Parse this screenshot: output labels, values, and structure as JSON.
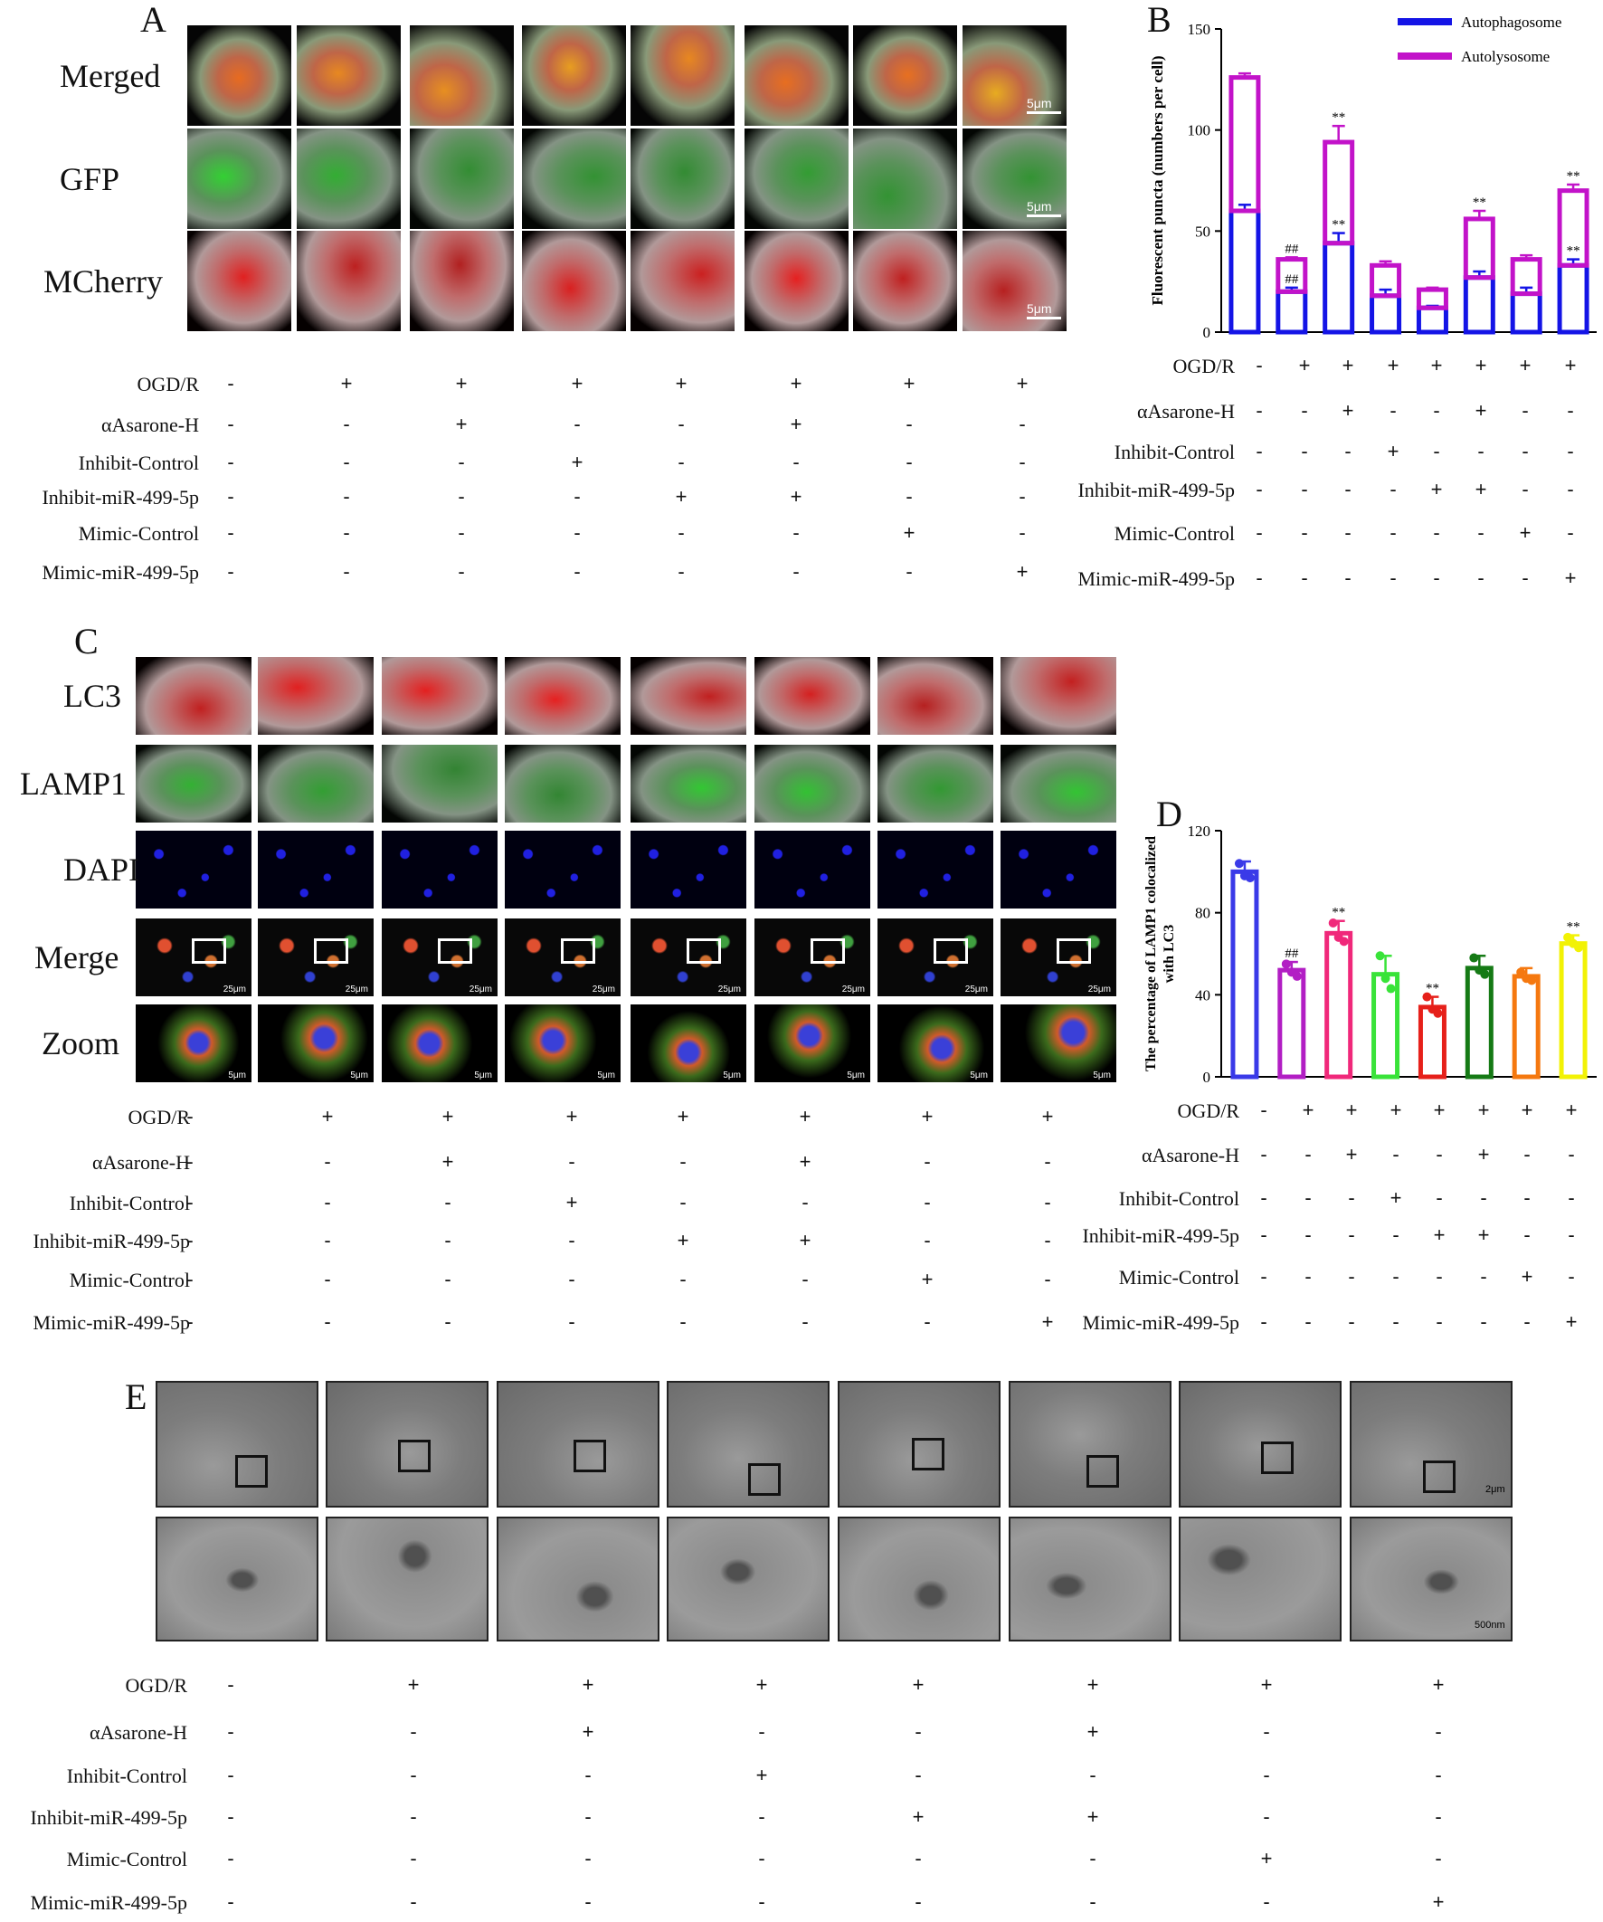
{
  "panels": {
    "A": {
      "letter": "A",
      "rows": [
        {
          "label": "Merged",
          "scale": "5μm",
          "color": "merged"
        },
        {
          "label": "GFP",
          "scale": "5μm",
          "color": "green"
        },
        {
          "label": "MCherry",
          "scale": "5μm",
          "color": "red"
        }
      ]
    },
    "C": {
      "letter": "C",
      "rows": [
        {
          "label": "LC3",
          "color": "red"
        },
        {
          "label": "LAMP1",
          "color": "green"
        },
        {
          "label": "DAPI",
          "color": "blue"
        },
        {
          "label": "Merge",
          "color": "merge",
          "scale": "25μm"
        },
        {
          "label": "Zoom",
          "color": "zoom",
          "scale": "5μm"
        }
      ]
    },
    "E": {
      "letter": "E",
      "scale_top": "2μm",
      "scale_bottom": "500nm"
    }
  },
  "conditions": {
    "labels": [
      "OGD/R",
      "αAsarone-H",
      "Inhibit-Control",
      "Inhibit-miR-499-5p",
      "Mimic-Control",
      "Mimic-miR-499-5p"
    ],
    "matrix": [
      [
        "-",
        "+",
        "+",
        "+",
        "+",
        "+",
        "+",
        "+"
      ],
      [
        "-",
        "-",
        "+",
        "-",
        "-",
        "+",
        "-",
        "-"
      ],
      [
        "-",
        "-",
        "-",
        "+",
        "-",
        "-",
        "-",
        "-"
      ],
      [
        "-",
        "-",
        "-",
        "-",
        "+",
        "+",
        "-",
        "-"
      ],
      [
        "-",
        "-",
        "-",
        "-",
        "-",
        "-",
        "+",
        "-"
      ],
      [
        "-",
        "-",
        "-",
        "-",
        "-",
        "-",
        "-",
        "+"
      ]
    ]
  },
  "chart_data": [
    {
      "panel": "B",
      "type": "bar",
      "stacked": true,
      "ylabel": "Fluorescent puncta (numbers per cell)",
      "ylim": [
        0,
        150
      ],
      "yticks": [
        0,
        50,
        100,
        150
      ],
      "legend": "top-right",
      "series": [
        {
          "name": "Autophagosome",
          "color": "#1414e6",
          "values": [
            60,
            20,
            44,
            18,
            12,
            27,
            19,
            33
          ],
          "errors": [
            3,
            2,
            5,
            3,
            1,
            3,
            3,
            3
          ],
          "annotations": [
            "",
            "##",
            "**",
            "",
            "",
            "",
            "",
            "**"
          ]
        },
        {
          "name": "Autolysosome",
          "color": "#c213c9",
          "values": [
            66,
            16,
            50,
            15,
            9,
            29,
            17,
            37
          ],
          "errors": [
            2,
            1,
            8,
            2,
            1,
            4,
            2,
            3
          ],
          "annotations": [
            "",
            "##",
            "**",
            "",
            "",
            "**",
            "",
            "**"
          ]
        }
      ]
    },
    {
      "panel": "D",
      "type": "bar",
      "ylabel": "The percentage of LAMP1 colocalized with LC3",
      "ylim": [
        0,
        120
      ],
      "yticks": [
        0,
        40,
        80,
        120
      ],
      "colors": [
        "#3a3ae8",
        "#b21ec4",
        "#f0287a",
        "#39e339",
        "#e6201a",
        "#157a15",
        "#f5780f",
        "#f2f205"
      ],
      "values": [
        100,
        52,
        70,
        50,
        34,
        53,
        49,
        65
      ],
      "errors": [
        5,
        4,
        6,
        9,
        5,
        6,
        4,
        4
      ],
      "points": [
        [
          104,
          98,
          97
        ],
        [
          55,
          51,
          49
        ],
        [
          75,
          68,
          66
        ],
        [
          59,
          48,
          43
        ],
        [
          39,
          33,
          31
        ],
        [
          58,
          52,
          50
        ],
        [
          51,
          48,
          47
        ],
        [
          68,
          65,
          63
        ]
      ],
      "annotations": [
        "",
        "##",
        "**",
        "",
        "**",
        "",
        "",
        "**"
      ]
    }
  ]
}
